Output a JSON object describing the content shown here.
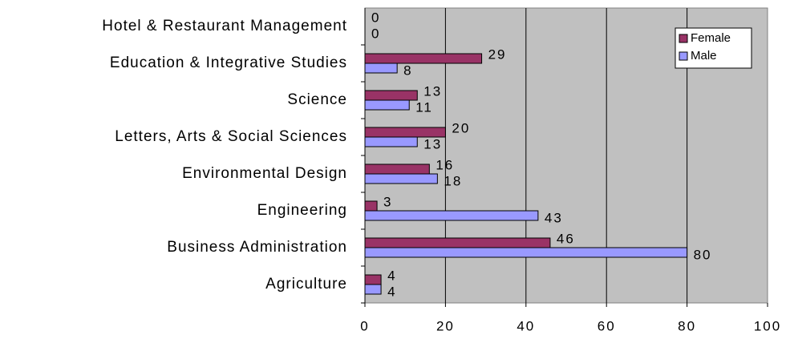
{
  "chart_data": {
    "type": "bar",
    "orientation": "horizontal",
    "categories": [
      "Agriculture",
      "Business  Administration",
      "Engineering",
      "Environmental  Design",
      "Letters, Arts & Social Sciences",
      "Science",
      "Education & Integrative Studies",
      "Hotel & Restaurant Management"
    ],
    "series": [
      {
        "name": "Female",
        "color": "#993366",
        "values": [
          4,
          46,
          3,
          16,
          20,
          13,
          29,
          0
        ]
      },
      {
        "name": "Male",
        "color": "#9999ff",
        "values": [
          4,
          80,
          43,
          18,
          13,
          11,
          8,
          0
        ]
      }
    ],
    "xlim": [
      0,
      100
    ],
    "xticks": [
      0,
      20,
      40,
      60,
      80,
      100
    ],
    "grid": true,
    "legend": "upper right"
  }
}
